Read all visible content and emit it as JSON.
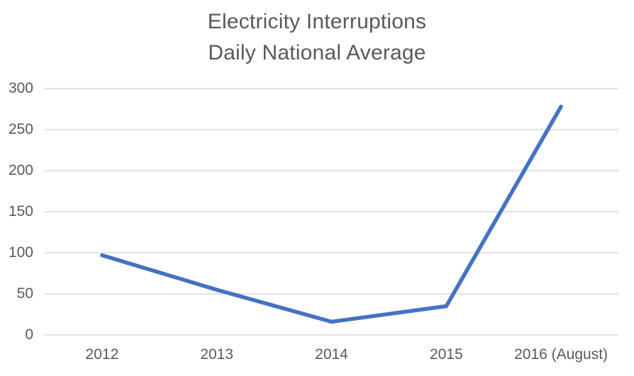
{
  "chart_data": {
    "type": "line",
    "title": "Electricity Interruptions",
    "subtitle": "Daily National Average",
    "categories": [
      "2012",
      "2013",
      "2014",
      "2015",
      "2016 (August)"
    ],
    "values": [
      97,
      55,
      16,
      35,
      278
    ],
    "xlabel": "",
    "ylabel": "",
    "ylim": [
      0,
      300
    ],
    "yticks": [
      0,
      50,
      100,
      150,
      200,
      250,
      300
    ],
    "grid": "horizontal",
    "legend": "none",
    "colors": {
      "line": "#4472C4",
      "gridline": "#D9D9D9",
      "text": "#595959",
      "background": "#FFFFFF"
    }
  }
}
